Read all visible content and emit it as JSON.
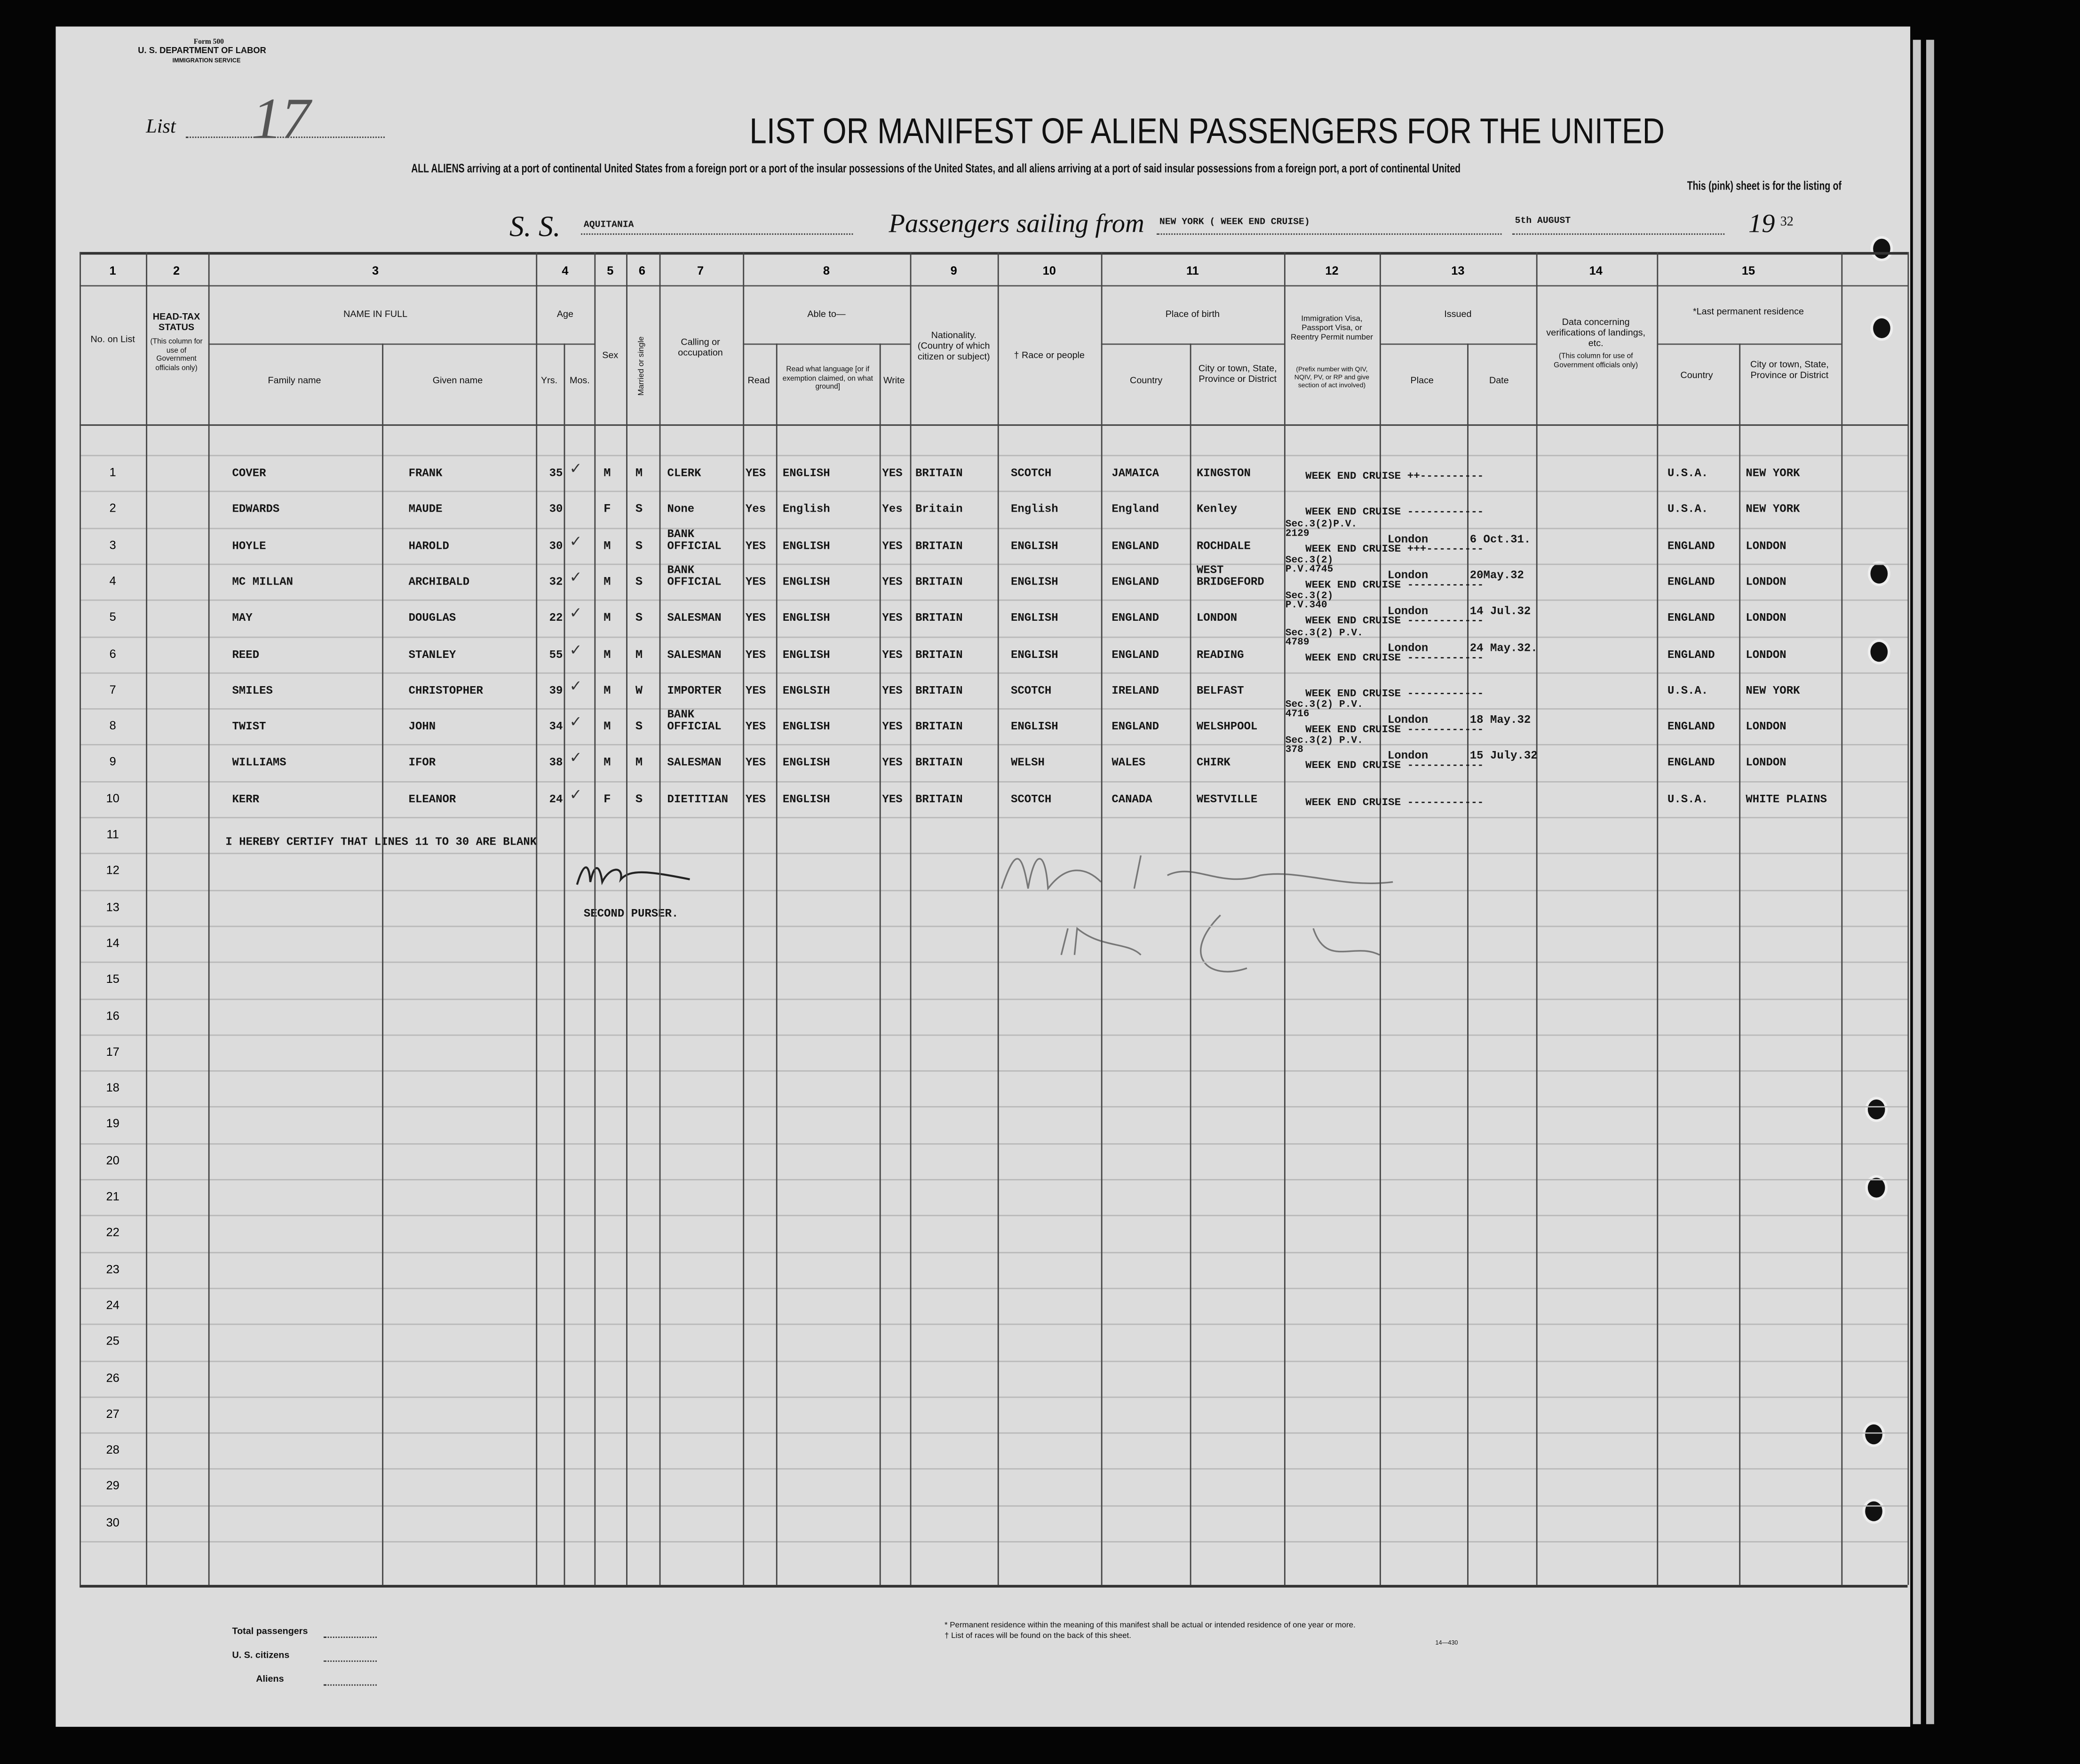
{
  "form": {
    "form_number": "Form 500",
    "department": "U. S. DEPARTMENT OF LABOR",
    "service": "IMMIGRATION SERVICE",
    "list_label": "List",
    "list_number": "17"
  },
  "title": "LIST OR MANIFEST OF ALIEN PASSENGERS FOR THE UNITED",
  "subtitle": "ALL ALIENS arriving at a port of continental United States from a foreign port or a port of the insular possessions of the United States, and all aliens arriving at a port of said insular possessions from a foreign port, a port of continental United",
  "subtitle2": "This (pink) sheet is for the listing of",
  "voyage": {
    "ss_label": "S. S.",
    "ship": "AQUITANIA",
    "sailing_label": "Passengers sailing from",
    "port": "NEW YORK ( WEEK END CRUISE)",
    "date": "5th AUGUST",
    "year_prefix": "19",
    "year_suffix": "32"
  },
  "columns": {
    "numbers": [
      "1",
      "2",
      "3",
      "4",
      "5",
      "6",
      "7",
      "8",
      "9",
      "10",
      "11",
      "12",
      "13",
      "14",
      "15"
    ],
    "no_on_list": "No. on List",
    "head_tax": "HEAD-TAX STATUS",
    "head_tax_note": "(This column for use of Government officials only)",
    "name_in_full": "NAME IN FULL",
    "family_name": "Family name",
    "given_name": "Given name",
    "age": "Age",
    "yrs": "Yrs.",
    "mos": "Mos.",
    "sex": "Sex",
    "married": "Married or single",
    "calling": "Calling or occupation",
    "able_to": "Able to—",
    "read": "Read",
    "read_language": "Read what language [or if exemption claimed, on what ground]",
    "write": "Write",
    "nationality": "Nationality. (Country of which citizen or subject)",
    "race": "† Race or people",
    "place_of_birth": "Place of birth",
    "country": "Country",
    "city": "City or town, State, Province or District",
    "visa": "Immigration Visa, Passport Visa, or Reentry Permit number",
    "visa_note": "(Prefix number with QIV, NQIV, PV, or RP and give section of act involved)",
    "issued": "Issued",
    "place": "Place",
    "date": "Date",
    "landing": "Data concerning verifications of landings, etc.",
    "landing_note": "(This column for use of Government officials only)",
    "last_residence": "*Last permanent residence",
    "res_country": "Country",
    "res_city": "City or town, State, Province or District"
  },
  "line_numbers": [
    "1",
    "2",
    "3",
    "4",
    "5",
    "6",
    "7",
    "8",
    "9",
    "10",
    "11",
    "12",
    "13",
    "14",
    "15",
    "16",
    "17",
    "18",
    "19",
    "20",
    "21",
    "22",
    "23",
    "24",
    "25",
    "26",
    "27",
    "28",
    "29",
    "30"
  ],
  "passengers": [
    {
      "family": "COVER",
      "given": "FRANK",
      "age": "35",
      "mos": "✓",
      "sex": "M",
      "marital": "M",
      "occupation": "CLERK",
      "read": "YES",
      "language": "ENGLISH",
      "write": "YES",
      "nationality": "BRITAIN",
      "race": "SCOTCH",
      "birth_country": "JAMAICA",
      "birth_city": "KINGSTON",
      "visa": "",
      "cruise": "WEEK END CRUISE ++----------",
      "issued_place": "",
      "issued_date": "",
      "res_country": "U.S.A.",
      "res_city": "NEW YORK"
    },
    {
      "family": "EDWARDS",
      "given": "MAUDE",
      "age": "30",
      "mos": "",
      "sex": "F",
      "marital": "S",
      "occupation": "None",
      "read": "Yes",
      "language": "English",
      "write": "Yes",
      "nationality": "Britain",
      "race": "English",
      "birth_country": "England",
      "birth_city": "Kenley",
      "visa": "",
      "cruise": "WEEK END CRUISE ------------",
      "issued_place": "",
      "issued_date": "",
      "res_country": "U.S.A.",
      "res_city": "NEW YORK"
    },
    {
      "family": "HOYLE",
      "given": "HAROLD",
      "age": "30",
      "mos": "✓",
      "sex": "M",
      "marital": "S",
      "occupation": "BANK OFFICIAL",
      "read": "YES",
      "language": "ENGLISH",
      "write": "YES",
      "nationality": "BRITAIN",
      "race": "ENGLISH",
      "birth_country": "ENGLAND",
      "birth_city": "ROCHDALE",
      "visa": "Sec.3(2)P.V. 2129",
      "cruise": "WEEK END CRUISE +++---------",
      "issued_place": "London",
      "issued_date": "6 Oct.31.",
      "res_country": "ENGLAND",
      "res_city": "LONDON"
    },
    {
      "family": "MC MILLAN",
      "given": "ARCHIBALD",
      "age": "32",
      "mos": "✓",
      "sex": "M",
      "marital": "S",
      "occupation": "BANK OFFICIAL",
      "read": "YES",
      "language": "ENGLISH",
      "write": "YES",
      "nationality": "BRITAIN",
      "race": "ENGLISH",
      "birth_country": "ENGLAND",
      "birth_city": "WEST BRIDGEFORD",
      "visa": "Sec.3(2) P.V.4745",
      "cruise": "WEEK END CRUISE ------------",
      "issued_place": "London",
      "issued_date": "20May.32",
      "res_country": "ENGLAND",
      "res_city": "LONDON"
    },
    {
      "family": "MAY",
      "given": "DOUGLAS",
      "age": "22",
      "mos": "✓",
      "sex": "M",
      "marital": "S",
      "occupation": "SALESMAN",
      "read": "YES",
      "language": "ENGLISH",
      "write": "YES",
      "nationality": "BRITAIN",
      "race": "ENGLISH",
      "birth_country": "ENGLAND",
      "birth_city": "LONDON",
      "visa": "Sec.3(2) P.V.340",
      "cruise": "WEEK END CRUISE ------------",
      "issued_place": "London",
      "issued_date": "14 Jul.32",
      "res_country": "ENGLAND",
      "res_city": "LONDON"
    },
    {
      "family": "REED",
      "given": "STANLEY",
      "age": "55",
      "mos": "✓",
      "sex": "M",
      "marital": "M",
      "occupation": "SALESMAN",
      "read": "YES",
      "language": "ENGLISH",
      "write": "YES",
      "nationality": "BRITAIN",
      "race": "ENGLISH",
      "birth_country": "ENGLAND",
      "birth_city": "READING",
      "visa": "Sec.3(2) P.V. 4789",
      "cruise": "WEEK END CRUISE ------------",
      "issued_place": "London",
      "issued_date": "24 May.32.",
      "res_country": "ENGLAND",
      "res_city": "LONDON"
    },
    {
      "family": "SMILES",
      "given": "CHRISTOPHER",
      "age": "39",
      "mos": "✓",
      "sex": "M",
      "marital": "W",
      "occupation": "IMPORTER",
      "read": "YES",
      "language": "ENGLSIH",
      "write": "YES",
      "nationality": "BRITAIN",
      "race": "SCOTCH",
      "birth_country": "IRELAND",
      "birth_city": "BELFAST",
      "visa": "",
      "cruise": "WEEK END CRUISE ------------",
      "issued_place": "",
      "issued_date": "",
      "res_country": "U.S.A.",
      "res_city": "NEW YORK"
    },
    {
      "family": "TWIST",
      "given": "JOHN",
      "age": "34",
      "mos": "✓",
      "sex": "M",
      "marital": "S",
      "occupation": "BANK OFFICIAL",
      "read": "YES",
      "language": "ENGLISH",
      "write": "YES",
      "nationality": "BRITAIN",
      "race": "ENGLISH",
      "birth_country": "ENGLAND",
      "birth_city": "WELSHPOOL",
      "visa": "Sec.3(2) P.V. 4716",
      "cruise": "WEEK END CRUISE ------------",
      "issued_place": "London",
      "issued_date": "18 May.32",
      "res_country": "ENGLAND",
      "res_city": "LONDON"
    },
    {
      "family": "WILLIAMS",
      "given": "IFOR",
      "age": "38",
      "mos": "✓",
      "sex": "M",
      "marital": "M",
      "occupation": "SALESMAN",
      "read": "YES",
      "language": "ENGLISH",
      "write": "YES",
      "nationality": "BRITAIN",
      "race": "WELSH",
      "birth_country": "WALES",
      "birth_city": "CHIRK",
      "visa": "Sec.3(2) P.V. 378",
      "cruise": "WEEK END CRUISE ------------",
      "issued_place": "London",
      "issued_date": "15 July.32",
      "res_country": "ENGLAND",
      "res_city": "LONDON"
    },
    {
      "family": "KERR",
      "given": "ELEANOR",
      "age": "24",
      "mos": "✓",
      "sex": "F",
      "marital": "S",
      "occupation": "DIETITIAN",
      "read": "YES",
      "language": "ENGLISH",
      "write": "YES",
      "nationality": "BRITAIN",
      "race": "SCOTCH",
      "birth_country": "CANADA",
      "birth_city": "WESTVILLE",
      "visa": "",
      "cruise": "WEEK END CRUISE ------------",
      "issued_place": "",
      "issued_date": "",
      "res_country": "U.S.A.",
      "res_city": "WHITE PLAINS"
    }
  ],
  "certification": "I HEREBY CERTIFY THAT LINES 11 TO 30 ARE BLANK",
  "signer_title": "SECOND PURSER.",
  "footer": {
    "total": "Total passengers",
    "citizens": "U. S. citizens",
    "aliens": "Aliens",
    "note1": "* Permanent residence within the meaning of this manifest shall be actual or intended residence of one year or more.",
    "note2": "† List of races will be found on the back of this sheet.",
    "code": "14—430"
  }
}
